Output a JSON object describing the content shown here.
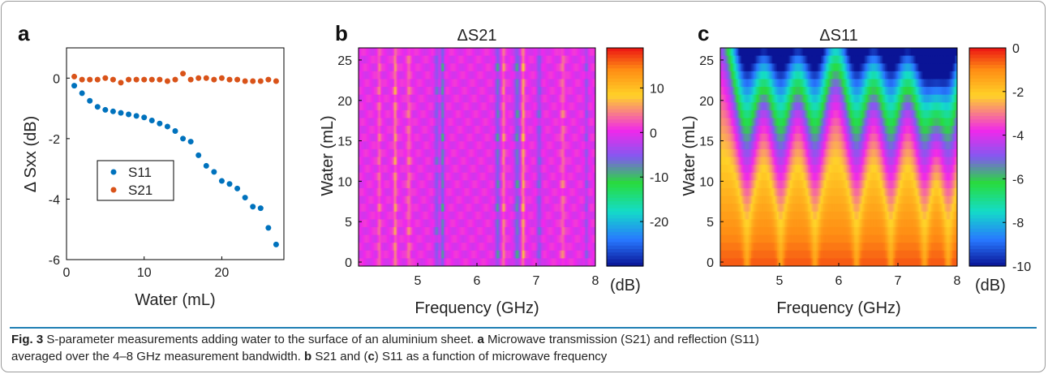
{
  "panel_labels": {
    "a": "a",
    "b": "b",
    "c": "c"
  },
  "colors": {
    "s11": "#0072bd",
    "s21": "#d95319",
    "heatmap_base": "#f026ec",
    "caption_rule": "#1f7fb4"
  },
  "colormap": "jet",
  "caption": {
    "fig": "Fig. 3",
    "main": "S-parameter measurements adding water to the surface of an aluminium sheet.",
    "a_label": "a",
    "a_text": "Microwave transmission (S21) and reflection (S11)",
    "a_text2": "averaged over the 4–8 GHz measurement bandwidth.",
    "b_label": "b",
    "b_text": "S21 and (",
    "c_label": "c",
    "c_text": ") S11 as a function of microwave frequency"
  },
  "chart_data": [
    {
      "type": "scatter",
      "panel": "a",
      "xlabel": "Water (mL)",
      "ylabel": "Δ Sxx (dB)",
      "xlim": [
        0,
        28
      ],
      "ylim": [
        -6,
        1
      ],
      "xticks": [
        0,
        10,
        20
      ],
      "yticks": [
        0,
        -2,
        -4,
        -6
      ],
      "legend_position": "center-left",
      "series": [
        {
          "name": "S11",
          "x": [
            1,
            2,
            3,
            4,
            5,
            6,
            7,
            8,
            9,
            10,
            11,
            12,
            13,
            14,
            15,
            16,
            17,
            18,
            19,
            20,
            21,
            22,
            23,
            24,
            25,
            26,
            27
          ],
          "y": [
            -0.25,
            -0.5,
            -0.75,
            -0.95,
            -1.05,
            -1.1,
            -1.15,
            -1.2,
            -1.25,
            -1.3,
            -1.4,
            -1.5,
            -1.6,
            -1.75,
            -2.0,
            -2.1,
            -2.55,
            -2.9,
            -3.1,
            -3.4,
            -3.5,
            -3.65,
            -3.95,
            -4.25,
            -4.3,
            -4.95,
            -5.5
          ]
        },
        {
          "name": "S21",
          "x": [
            1,
            2,
            3,
            4,
            5,
            6,
            7,
            8,
            9,
            10,
            11,
            12,
            13,
            14,
            15,
            16,
            17,
            18,
            19,
            20,
            21,
            22,
            23,
            24,
            25,
            26,
            27
          ],
          "y": [
            0.05,
            -0.05,
            -0.05,
            -0.05,
            0.0,
            -0.05,
            -0.15,
            -0.05,
            -0.05,
            -0.05,
            -0.05,
            -0.05,
            -0.1,
            -0.05,
            0.15,
            -0.05,
            0.0,
            0.0,
            -0.05,
            0.0,
            -0.05,
            -0.05,
            -0.1,
            -0.1,
            -0.1,
            -0.05,
            -0.1
          ]
        }
      ]
    },
    {
      "type": "heatmap",
      "panel": "b",
      "title": "ΔS21",
      "xlabel": "Frequency (GHz)",
      "ylabel": "Water (mL)",
      "xlim": [
        4,
        8
      ],
      "ylim": [
        -0.5,
        26.5
      ],
      "xticks": [
        5,
        6,
        7,
        8
      ],
      "yticks": [
        0,
        5,
        10,
        15,
        20,
        25
      ],
      "colorbar": {
        "min": -30,
        "max": 19,
        "ticks": [
          10,
          0,
          -10,
          -20
        ],
        "unit": "(dB)"
      },
      "rows": 28,
      "cols": 200,
      "description": "mostly ~0 dB (magenta) with thin vertical streaks around 4.4–4.9 GHz (yellow), 5.4 GHz (cyan) and 6.3–7.0 GHz (cyan/yellow)",
      "streaks": [
        {
          "f": 4.35,
          "width": 0.03,
          "value": 4
        },
        {
          "f": 4.62,
          "width": 0.03,
          "value": 6
        },
        {
          "f": 4.85,
          "width": 0.04,
          "value": 4
        },
        {
          "f": 5.32,
          "width": 0.04,
          "value": -6
        },
        {
          "f": 5.42,
          "width": 0.03,
          "value": -9
        },
        {
          "f": 6.35,
          "width": 0.04,
          "value": -8
        },
        {
          "f": 6.45,
          "width": 0.03,
          "value": 5
        },
        {
          "f": 6.68,
          "width": 0.05,
          "value": -8
        },
        {
          "f": 6.78,
          "width": 0.03,
          "value": 7
        },
        {
          "f": 7.05,
          "width": 0.04,
          "value": -6
        },
        {
          "f": 7.45,
          "width": 0.04,
          "value": 4
        },
        {
          "f": 7.85,
          "width": 0.03,
          "value": -5
        }
      ]
    },
    {
      "type": "heatmap",
      "panel": "c",
      "title": "ΔS11",
      "xlabel": "Frequency (GHz)",
      "ylabel": "Water (mL)",
      "xlim": [
        4,
        8
      ],
      "ylim": [
        -0.5,
        26.5
      ],
      "xticks": [
        5,
        6,
        7,
        8
      ],
      "yticks": [
        0,
        5,
        10,
        15,
        20,
        25
      ],
      "colorbar": {
        "min": -10,
        "max": 0,
        "ticks": [
          0,
          -2,
          -4,
          -6,
          -8,
          -10
        ],
        "unit": "(dB)"
      },
      "rows": 28,
      "cols": 200,
      "description": "near 0 dB at low water, decreasing with water; vertical notches (resonances) at ~4.45, 5.0, 5.6, 6.3, 6.9, 7.45, 7.85 GHz reaching about -10 dB at the top",
      "notches": [
        4.45,
        5.02,
        5.6,
        6.3,
        6.88,
        7.45,
        7.85
      ]
    }
  ]
}
